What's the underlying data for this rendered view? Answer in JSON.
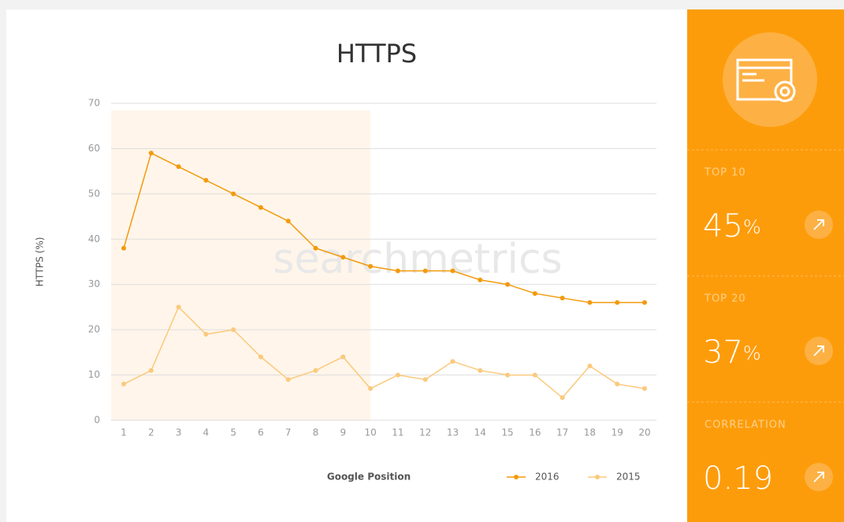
{
  "chart_data": {
    "type": "line",
    "title": "HTTPS",
    "ylabel": "HTTPS (%)",
    "xlabel": "Google Position",
    "watermark": "searchmetrics",
    "categories": [
      "1",
      "2",
      "3",
      "4",
      "5",
      "6",
      "7",
      "8",
      "9",
      "10",
      "11",
      "12",
      "13",
      "14",
      "15",
      "16",
      "17",
      "18",
      "19",
      "20"
    ],
    "series": [
      {
        "name": "2016",
        "color": "#f39a0d",
        "values": [
          38,
          59,
          56,
          53,
          50,
          47,
          44,
          38,
          36,
          34,
          33,
          33,
          33,
          31,
          30,
          28,
          27,
          26,
          26,
          26
        ]
      },
      {
        "name": "2015",
        "color": "#fbc97c",
        "values": [
          8,
          11,
          25,
          19,
          20,
          14,
          9,
          11,
          14,
          7,
          10,
          9,
          13,
          11,
          10,
          10,
          5,
          12,
          8,
          7
        ]
      }
    ],
    "ylim": [
      0,
      70
    ],
    "yticks": [
      0,
      10,
      20,
      30,
      40,
      50,
      60,
      70
    ],
    "grid": true
  },
  "panel": {
    "stats": [
      {
        "label": "TOP 10",
        "value": "45",
        "unit": "%"
      },
      {
        "label": "TOP 20",
        "value": "37",
        "unit": "%"
      },
      {
        "label": "CORRELATION",
        "value": "0.19"
      }
    ]
  }
}
